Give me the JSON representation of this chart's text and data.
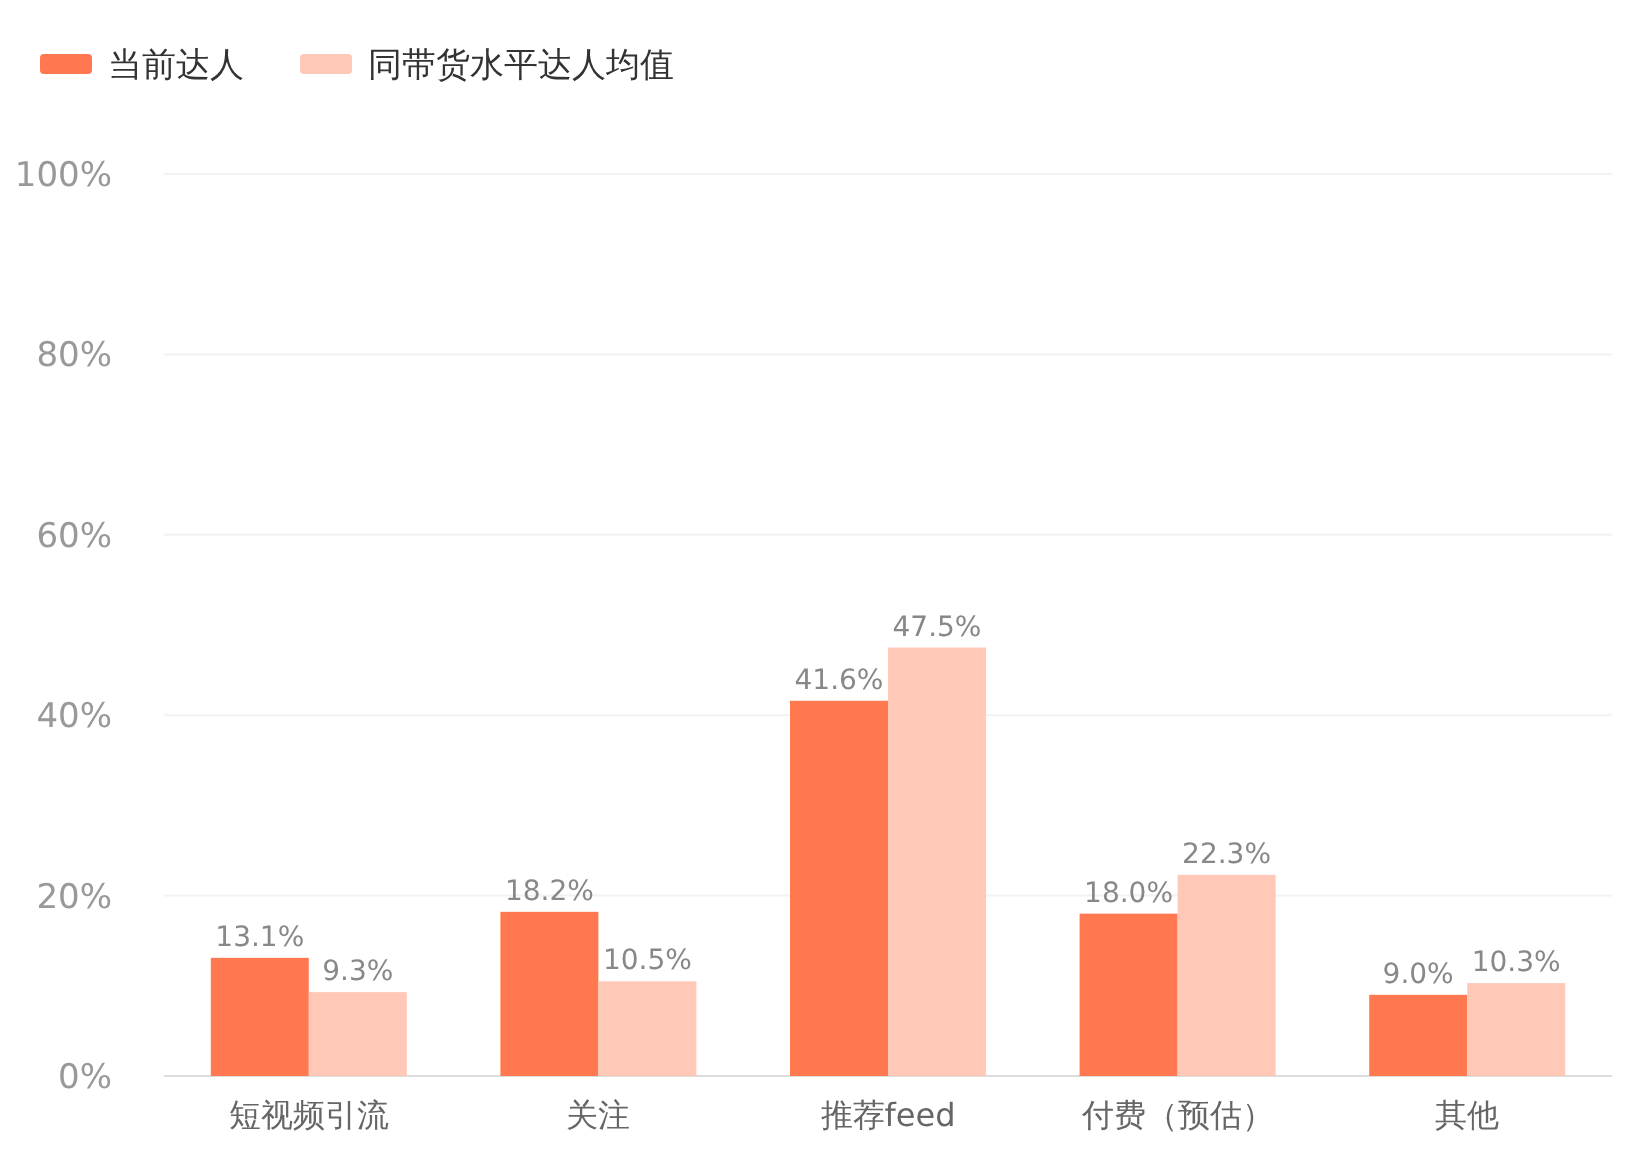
{
  "chart_data": {
    "type": "bar",
    "categories": [
      "短视频引流",
      "关注",
      "推荐feed",
      "付费（预估）",
      "其他"
    ],
    "series": [
      {
        "name": "当前达人",
        "color": "#ff7850",
        "values": [
          13.1,
          18.2,
          41.6,
          18.0,
          9.0
        ],
        "value_labels": [
          "13.1%",
          "18.2%",
          "41.6%",
          "18.0%",
          "9.0%"
        ]
      },
      {
        "name": "同带货水平达人均值",
        "color": "#ffc8b7",
        "values": [
          9.3,
          10.5,
          47.5,
          22.3,
          10.3
        ],
        "value_labels": [
          "9.3%",
          "10.5%",
          "47.5%",
          "22.3%",
          "10.3%"
        ]
      }
    ],
    "ylim": [
      0,
      100
    ],
    "yticks": [
      {
        "value": 0,
        "label": "0%"
      },
      {
        "value": 20,
        "label": "20%"
      },
      {
        "value": 40,
        "label": "40%"
      },
      {
        "value": 60,
        "label": "60%"
      },
      {
        "value": 80,
        "label": "80%"
      },
      {
        "value": 100,
        "label": "100%"
      }
    ],
    "grid": "y",
    "legend": "top left"
  }
}
